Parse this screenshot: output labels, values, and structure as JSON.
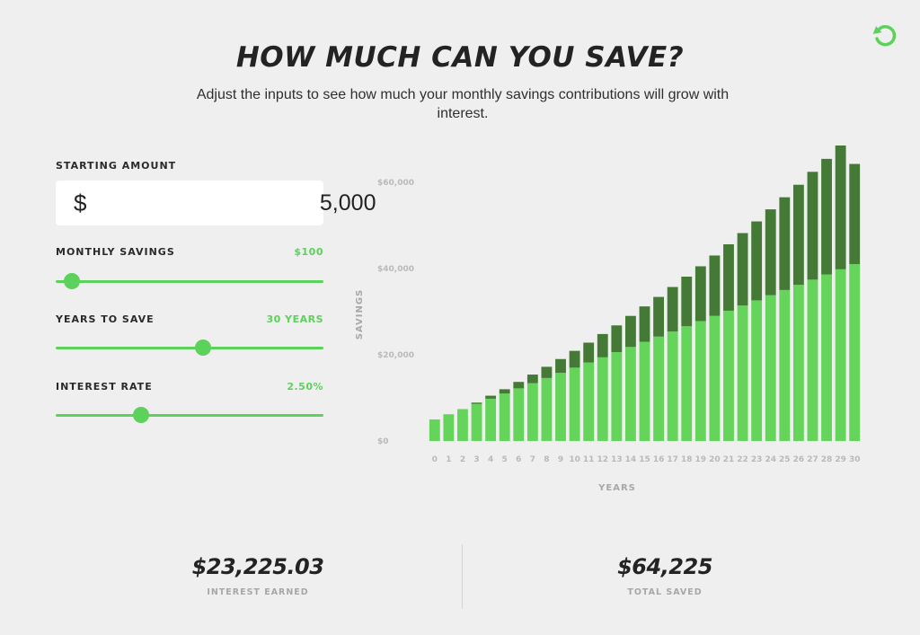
{
  "header": {
    "title": "HOW MUCH CAN YOU SAVE?",
    "subtitle": "Adjust the inputs to see how much your monthly savings contributions will grow with interest.",
    "reset_icon": "reset-arrow-icon"
  },
  "inputs": {
    "starting_amount": {
      "label": "STARTING AMOUNT",
      "currency": "$",
      "value": "5,000"
    },
    "monthly_savings": {
      "label": "MONTHLY SAVINGS",
      "value_label": "$100",
      "value": 100,
      "fraction": 0.06
    },
    "years_to_save": {
      "label": "YEARS TO SAVE",
      "value_label": "30 YEARS",
      "value": 30,
      "fraction": 0.55
    },
    "interest_rate": {
      "label": "INTEREST RATE",
      "value_label": "2.50%",
      "value": 2.5,
      "fraction": 0.32
    }
  },
  "summary": {
    "interest_earned": {
      "value": "$23,225.03",
      "label": "INTEREST EARNED"
    },
    "total_saved": {
      "value": "$64,225",
      "label": "TOTAL SAVED"
    }
  },
  "colors": {
    "accent": "#5cd15b",
    "bar_principal": "#64d45a",
    "bar_interest": "#447a36"
  },
  "chart_data": {
    "type": "bar",
    "stacked": true,
    "xlabel": "YEARS",
    "ylabel": "SAVINGS",
    "ylim": [
      0,
      66000
    ],
    "yticks": [
      {
        "value": 0,
        "label": "$0"
      },
      {
        "value": 20000,
        "label": "$20,000"
      },
      {
        "value": 40000,
        "label": "$40,000"
      },
      {
        "value": 60000,
        "label": "$60,000"
      }
    ],
    "categories": [
      "0",
      "1",
      "2",
      "3",
      "4",
      "5",
      "6",
      "7",
      "8",
      "9",
      "10",
      "11",
      "12",
      "13",
      "14",
      "15",
      "16",
      "17",
      "18",
      "19",
      "20",
      "21",
      "22",
      "23",
      "24",
      "25",
      "26",
      "27",
      "28",
      "29",
      "30"
    ],
    "series": [
      {
        "values": [
          5000,
          6200,
          7400,
          8600,
          9800,
          11000,
          12200,
          13400,
          14600,
          15800,
          17000,
          18200,
          19400,
          20600,
          21800,
          23000,
          24200,
          25400,
          26600,
          27800,
          29000,
          30200,
          31400,
          32600,
          33800,
          35000,
          36200,
          37400,
          38600,
          39800,
          41000
        ]
      },
      {
        "values": [
          0,
          0,
          0,
          300,
          700,
          1000,
          1500,
          2000,
          2600,
          3200,
          3900,
          4600,
          5400,
          6200,
          7200,
          8200,
          9200,
          10300,
          11500,
          12700,
          14000,
          15400,
          16800,
          18300,
          19900,
          21500,
          23200,
          25000,
          26800,
          28700,
          23225
        ]
      }
    ]
  }
}
